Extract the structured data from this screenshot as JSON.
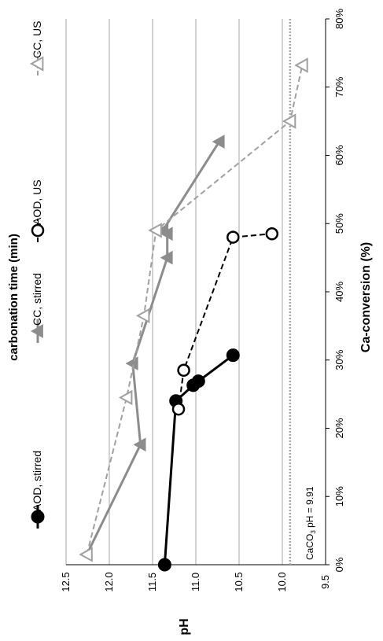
{
  "chart_data": {
    "type": "scatter",
    "orientation": "rotated-90-counterclockwise",
    "title": "carbonation time (min)",
    "xlabel": "Ca-conversion (%)",
    "ylabel": "pH",
    "xlim": [
      0,
      80
    ],
    "ylim": [
      9.5,
      12.5
    ],
    "x_ticks": [
      "0%",
      "10%",
      "20%",
      "30%",
      "40%",
      "50%",
      "60%",
      "70%",
      "80%"
    ],
    "y_ticks": [
      "9.5",
      "10.0",
      "10.5",
      "11.0",
      "11.5",
      "12.0",
      "12.5"
    ],
    "grid": "horizontal gridlines at y ticks",
    "legend_position": "top",
    "reference_line": {
      "y": 9.91,
      "label": "pH = 9.91",
      "label_prefix": "CaCO",
      "label_subscript": "3"
    },
    "series": [
      {
        "name": "AOD, stirred",
        "style": "solid",
        "marker": "filled-circle",
        "color": "#000000",
        "x": [
          0,
          24,
          26.3,
          26.9,
          30.7
        ],
        "y": [
          11.36,
          11.23,
          11.03,
          10.97,
          10.57
        ]
      },
      {
        "name": "AOD, US",
        "style": "dashed",
        "marker": "open-circle",
        "color": "#000000",
        "x": [
          22.8,
          28.5,
          48,
          48.5
        ],
        "y": [
          11.2,
          11.14,
          10.57,
          10.12
        ]
      },
      {
        "name": "CC, stirred",
        "style": "solid",
        "marker": "filled-triangle",
        "color": "#8c8c8c",
        "x": [
          1.5,
          17.6,
          29.5,
          45,
          48.5,
          49,
          62
        ],
        "y": [
          12.26,
          11.64,
          11.73,
          11.33,
          11.33,
          11.38,
          10.73
        ]
      },
      {
        "name": "CC, US",
        "style": "dashed",
        "marker": "open-triangle",
        "color": "#a0a0a0",
        "x": [
          1.5,
          24.5,
          36.5,
          49,
          65,
          73.2
        ],
        "y": [
          12.26,
          11.8,
          11.6,
          11.46,
          9.91,
          9.77
        ]
      }
    ]
  }
}
